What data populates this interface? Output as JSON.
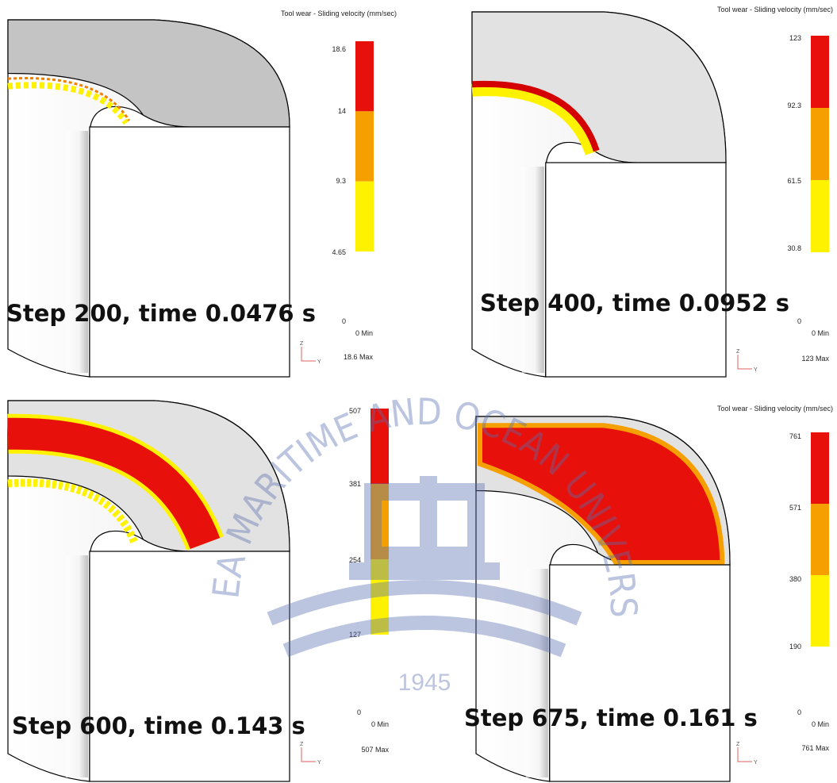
{
  "panels": [
    {
      "title": "Tool wear - Sliding velocity (mm/sec)",
      "legend": [
        "18.6",
        "14",
        "9.3",
        "4.65"
      ],
      "zero": "0",
      "min": "0  Min",
      "max": "18.6  Max",
      "caption": "Step 200, time 0.0476 s",
      "axes": [
        "Z",
        "Y"
      ]
    },
    {
      "title": "Tool wear - Sliding velocity (mm/sec)",
      "legend": [
        "123",
        "92.3",
        "61.5",
        "30.8"
      ],
      "zero": "0",
      "min": "0  Min",
      "max": "123  Max",
      "caption": "Step 400, time 0.0952 s",
      "axes": [
        "Z",
        "Y"
      ]
    },
    {
      "legend": [
        "507",
        "381",
        "254",
        "127"
      ],
      "zero": "0",
      "min": "0  Min",
      "max": "507  Max",
      "caption": "Step 600, time 0.143 s",
      "axes": [
        "Z",
        "Y"
      ]
    },
    {
      "title": "Tool wear - Sliding velocity (mm/sec)",
      "legend": [
        "761",
        "571",
        "380",
        "190"
      ],
      "zero": "0",
      "min": "0  Min",
      "max": "761  Max",
      "caption": "Step 675, time 0.161 s",
      "axes": [
        "Z",
        "Y"
      ]
    }
  ],
  "watermark": {
    "arc_text": "KOREA MARITIME AND OCEAN UNIVERSITY",
    "year": "1945"
  }
}
